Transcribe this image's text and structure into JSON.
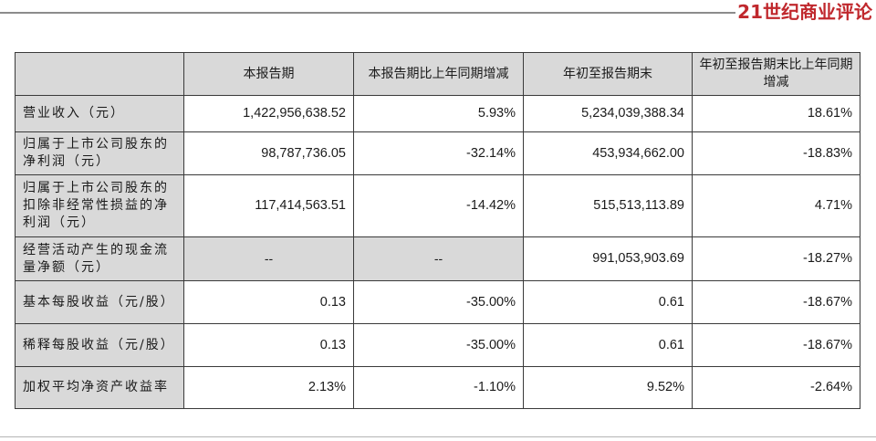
{
  "brand": {
    "logo_text": "21世纪商业评论"
  },
  "table": {
    "headers": [
      "",
      "本报告期",
      "本报告期比上年同期增减",
      "年初至报告期末",
      "年初至报告期末比上年同期增减"
    ],
    "rows": [
      {
        "label": "营业收入（元）",
        "values": [
          "1,422,956,638.52",
          "5.93%",
          "5,234,039,388.34",
          "18.61%"
        ]
      },
      {
        "label": "归属于上市公司股东的净利润（元）",
        "values": [
          "98,787,736.05",
          "-32.14%",
          "453,934,662.00",
          "-18.83%"
        ]
      },
      {
        "label": "归属于上市公司股东的扣除非经常性损益的净利润（元）",
        "values": [
          "117,414,563.51",
          "-14.42%",
          "515,513,113.89",
          "4.71%"
        ]
      },
      {
        "label": "经营活动产生的现金流量净额（元）",
        "values": [
          "--",
          "--",
          "991,053,903.69",
          "-18.27%"
        ]
      },
      {
        "label": "基本每股收益（元/股）",
        "values": [
          "0.13",
          "-35.00%",
          "0.61",
          "-18.67%"
        ]
      },
      {
        "label": "稀释每股收益（元/股）",
        "values": [
          "0.13",
          "-35.00%",
          "0.61",
          "-18.67%"
        ]
      },
      {
        "label": "加权平均净资产收益率",
        "values": [
          "2.13%",
          "-1.10%",
          "9.52%",
          "-2.64%"
        ]
      }
    ]
  }
}
